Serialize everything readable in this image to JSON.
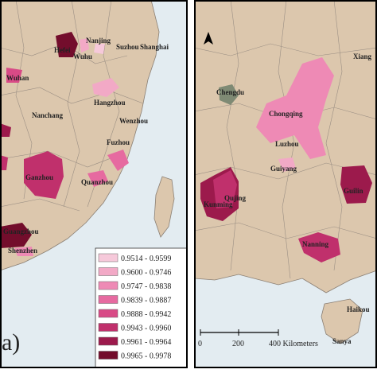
{
  "left_panel": {
    "panel_label": "(a)",
    "cities": [
      "Nanjing",
      "Hefei",
      "Wuhu",
      "Suzhou",
      "Shanghai",
      "Wuhan",
      "Hangzhou",
      "Nanchang",
      "Wenzhou",
      "Fuzhou",
      "Ganzhou",
      "Quanzhou",
      "Guangzhou",
      "Shenzhen"
    ],
    "legend": [
      {
        "label": "0.9514 - 0.9599",
        "color": "#f6c9da"
      },
      {
        "label": "0.9600 - 0.9746",
        "color": "#f2a9c6"
      },
      {
        "label": "0.9747 - 0.9838",
        "color": "#ee8ab5"
      },
      {
        "label": "0.9839 - 0.9887",
        "color": "#e66aa0"
      },
      {
        "label": "0.9888 - 0.9942",
        "color": "#d84a86"
      },
      {
        "label": "0.9943 - 0.9960",
        "color": "#c0306c"
      },
      {
        "label": "0.9961 - 0.9964",
        "color": "#9c1a4c"
      },
      {
        "label": "0.9965 - 0.9978",
        "color": "#730d2c"
      }
    ]
  },
  "right_panel": {
    "cities": [
      "Xiang",
      "Chengdu",
      "Chongqing",
      "Luzhou",
      "Guiyang",
      "Kunming",
      "Qujing",
      "Guilin",
      "Nanning",
      "Haikou",
      "Sanya"
    ],
    "scale_bar": [
      "0",
      "200",
      "400 Kilometers"
    ]
  }
}
